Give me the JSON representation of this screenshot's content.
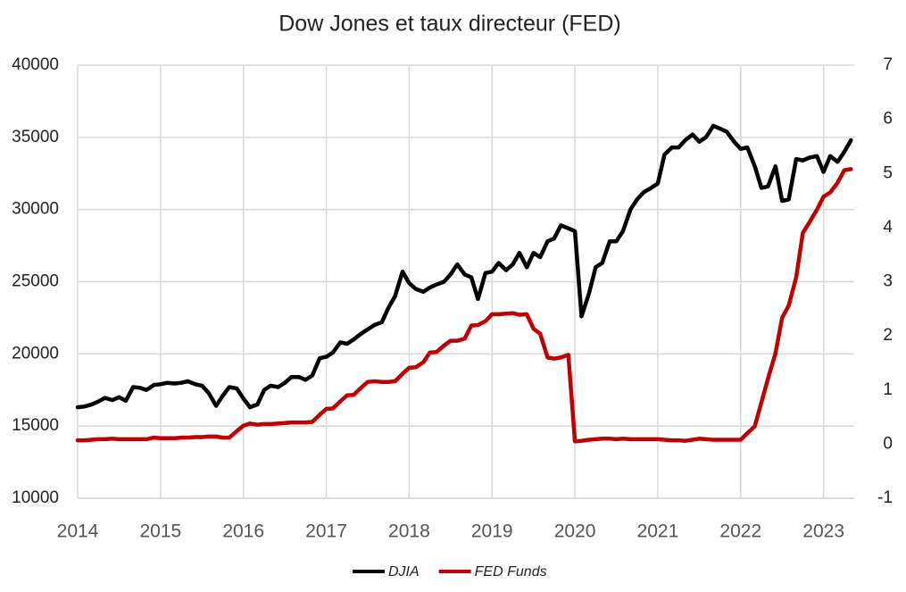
{
  "chart_data": {
    "type": "line",
    "title": "Dow Jones et taux directeur (FED)",
    "x": [
      2014.0,
      2014.08,
      2014.17,
      2014.25,
      2014.33,
      2014.42,
      2014.5,
      2014.58,
      2014.67,
      2014.75,
      2014.83,
      2014.92,
      2015.0,
      2015.08,
      2015.17,
      2015.25,
      2015.33,
      2015.42,
      2015.5,
      2015.58,
      2015.67,
      2015.75,
      2015.83,
      2015.92,
      2016.0,
      2016.08,
      2016.17,
      2016.25,
      2016.33,
      2016.42,
      2016.5,
      2016.58,
      2016.67,
      2016.75,
      2016.83,
      2016.92,
      2017.0,
      2017.08,
      2017.17,
      2017.25,
      2017.33,
      2017.42,
      2017.5,
      2017.58,
      2017.67,
      2017.75,
      2017.83,
      2017.92,
      2018.0,
      2018.08,
      2018.17,
      2018.25,
      2018.33,
      2018.42,
      2018.5,
      2018.58,
      2018.67,
      2018.75,
      2018.83,
      2018.92,
      2019.0,
      2019.08,
      2019.17,
      2019.25,
      2019.33,
      2019.42,
      2019.5,
      2019.58,
      2019.67,
      2019.75,
      2019.83,
      2019.92,
      2020.0,
      2020.08,
      2020.17,
      2020.25,
      2020.33,
      2020.42,
      2020.5,
      2020.58,
      2020.67,
      2020.75,
      2020.83,
      2020.92,
      2021.0,
      2021.08,
      2021.17,
      2021.25,
      2021.33,
      2021.42,
      2021.5,
      2021.58,
      2021.67,
      2021.75,
      2021.83,
      2021.92,
      2022.0,
      2022.08,
      2022.17,
      2022.25,
      2022.33,
      2022.42,
      2022.5,
      2022.58,
      2022.67,
      2022.75,
      2022.83,
      2022.92,
      2023.0,
      2023.08,
      2023.17,
      2023.25,
      2023.33
    ],
    "series": [
      {
        "name": "DJIA",
        "color": "#000000",
        "values": [
          16300,
          16350,
          16500,
          16700,
          16950,
          16800,
          17000,
          16750,
          17700,
          17650,
          17500,
          17850,
          17900,
          18000,
          17950,
          18000,
          18100,
          17900,
          17800,
          17300,
          16400,
          17100,
          17700,
          17600,
          16900,
          16300,
          16500,
          17500,
          17800,
          17700,
          18000,
          18400,
          18400,
          18200,
          18500,
          19700,
          19800,
          20100,
          20800,
          20700,
          21000,
          21400,
          21700,
          22000,
          22200,
          23200,
          24000,
          25700,
          24900,
          24500,
          24300,
          24600,
          24800,
          25000,
          25500,
          26200,
          25500,
          25300,
          23800,
          25600,
          25700,
          26300,
          25800,
          26200,
          27000,
          26000,
          27000,
          26700,
          27800,
          28000,
          28900,
          28700,
          28500,
          22600,
          24200,
          26000,
          26300,
          27800,
          27800,
          28500,
          30000,
          30700,
          31200,
          31500,
          31800,
          33800,
          34300,
          34300,
          34800,
          35200,
          34700,
          35000,
          35800,
          35600,
          35400,
          34700,
          34200,
          34300,
          33000,
          31500,
          31600,
          33000,
          30600,
          30700,
          33500,
          33400,
          33600,
          33700,
          32600,
          33700,
          33300,
          34000,
          34800
        ]
      },
      {
        "name": "FED Funds",
        "color": "#c00000",
        "axis": "y2",
        "values": [
          0.07,
          0.07,
          0.08,
          0.09,
          0.09,
          0.1,
          0.09,
          0.09,
          0.09,
          0.09,
          0.09,
          0.12,
          0.11,
          0.11,
          0.11,
          0.12,
          0.12,
          0.13,
          0.13,
          0.14,
          0.14,
          0.12,
          0.12,
          0.24,
          0.34,
          0.38,
          0.36,
          0.37,
          0.37,
          0.38,
          0.39,
          0.4,
          0.4,
          0.4,
          0.41,
          0.54,
          0.65,
          0.66,
          0.79,
          0.9,
          0.91,
          1.04,
          1.15,
          1.16,
          1.15,
          1.15,
          1.16,
          1.3,
          1.41,
          1.42,
          1.51,
          1.69,
          1.7,
          1.82,
          1.91,
          1.91,
          1.95,
          2.19,
          2.2,
          2.27,
          2.4,
          2.4,
          2.41,
          2.42,
          2.39,
          2.4,
          2.13,
          2.04,
          1.6,
          1.58,
          1.6,
          1.65,
          0.05,
          0.06,
          0.08,
          0.09,
          0.1,
          0.1,
          0.09,
          0.1,
          0.09,
          0.09,
          0.09,
          0.09,
          0.09,
          0.08,
          0.07,
          0.07,
          0.06,
          0.08,
          0.1,
          0.09,
          0.08,
          0.08,
          0.08,
          0.08,
          0.08,
          0.2,
          0.33,
          0.77,
          1.21,
          1.68,
          2.33,
          2.56,
          3.08,
          3.9,
          4.1,
          4.33,
          4.57,
          4.65,
          4.83,
          5.06,
          5.08
        ]
      }
    ],
    "xlim": [
      2014,
      2023.37
    ],
    "xticks": [
      2014,
      2015,
      2016,
      2017,
      2018,
      2019,
      2020,
      2021,
      2022,
      2023
    ],
    "ylim": [
      10000,
      40000
    ],
    "yticks": [
      10000,
      15000,
      20000,
      25000,
      30000,
      35000,
      40000
    ],
    "y2lim": [
      -1,
      7
    ],
    "y2ticks": [
      -1,
      0,
      1,
      2,
      3,
      4,
      5,
      6,
      7
    ],
    "grid": true,
    "legend": "bottom"
  }
}
